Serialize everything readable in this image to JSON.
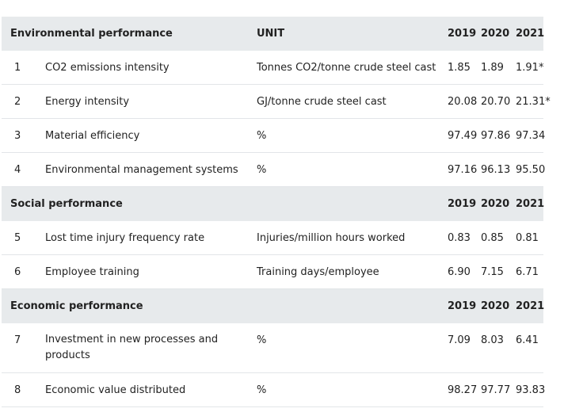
{
  "sections": {
    "environmental": {
      "title": "Environmental performance",
      "unit_header": "UNIT",
      "years": [
        "2019",
        "2020",
        "2021"
      ],
      "rows": [
        {
          "num": "1",
          "name": "CO2 emissions intensity",
          "unit": "Tonnes CO2/tonne crude steel cast",
          "v2019": "1.85",
          "v2020": "1.89",
          "v2021": "1.91*"
        },
        {
          "num": "2",
          "name": "Energy intensity",
          "unit": "GJ/tonne crude steel cast",
          "v2019": "20.08",
          "v2020": "20.70",
          "v2021": "21.31*"
        },
        {
          "num": "3",
          "name": "Material efficiency",
          "unit": "%",
          "v2019": "97.49",
          "v2020": "97.86",
          "v2021": "97.34"
        },
        {
          "num": "4",
          "name": "Environmental management systems",
          "unit": "%",
          "v2019": "97.16",
          "v2020": "96.13",
          "v2021": "95.50"
        }
      ]
    },
    "social": {
      "title": "Social performance",
      "years": [
        "2019",
        "2020",
        "2021"
      ],
      "rows": [
        {
          "num": "5",
          "name": "Lost time injury frequency rate",
          "unit": "Injuries/million hours worked",
          "v2019": "0.83",
          "v2020": "0.85",
          "v2021": "0.81"
        },
        {
          "num": "6",
          "name": "Employee training",
          "unit": "Training days/employee",
          "v2019": "6.90",
          "v2020": "7.15",
          "v2021": "6.71"
        }
      ]
    },
    "economic": {
      "title": "Economic performance",
      "years": [
        "2019",
        "2020",
        "2021"
      ],
      "rows": [
        {
          "num": "7",
          "name": "Investment in new processes and products",
          "unit": "%",
          "v2019": "7.09",
          "v2020": "8.03",
          "v2021": "6.41"
        },
        {
          "num": "8",
          "name": "Economic value distributed",
          "unit": "%",
          "v2019": "98.27",
          "v2020": "97.77",
          "v2021": "93.83"
        }
      ]
    }
  }
}
